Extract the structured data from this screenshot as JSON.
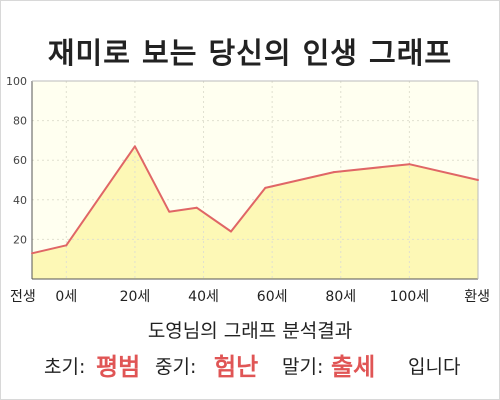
{
  "title": "재미로 보는 당신의 인생 그래프",
  "chart_data": {
    "type": "area",
    "categories": [
      "전생",
      "0세",
      "20세",
      "40세",
      "60세",
      "80세",
      "100세",
      "환생"
    ],
    "x_positions": [
      -10,
      0,
      20,
      40,
      60,
      80,
      100,
      120
    ],
    "points": [
      {
        "x": -10,
        "y": 13
      },
      {
        "x": 0,
        "y": 17
      },
      {
        "x": 20,
        "y": 67
      },
      {
        "x": 30,
        "y": 34
      },
      {
        "x": 38,
        "y": 36
      },
      {
        "x": 48,
        "y": 24
      },
      {
        "x": 58,
        "y": 46
      },
      {
        "x": 68,
        "y": 50
      },
      {
        "x": 78,
        "y": 54
      },
      {
        "x": 100,
        "y": 58
      },
      {
        "x": 120,
        "y": 50
      }
    ],
    "yticks": [
      20,
      40,
      60,
      80,
      100
    ],
    "ylim": [
      0,
      100
    ],
    "xlim": [
      -10,
      120
    ],
    "grid": true,
    "line_color": "#e06666",
    "fill_color": "#fdf8b6"
  },
  "summary": {
    "subtitle": "도영님의 그래프 분석결과",
    "early_label": "초기:",
    "early_value": "평범",
    "mid_label": "중기:",
    "mid_value": "험난",
    "late_label": "말기:",
    "late_value": "출세",
    "ending": "입니다"
  },
  "colors": {
    "highlight": "#e05555",
    "plot_bg": "#fffff0"
  }
}
